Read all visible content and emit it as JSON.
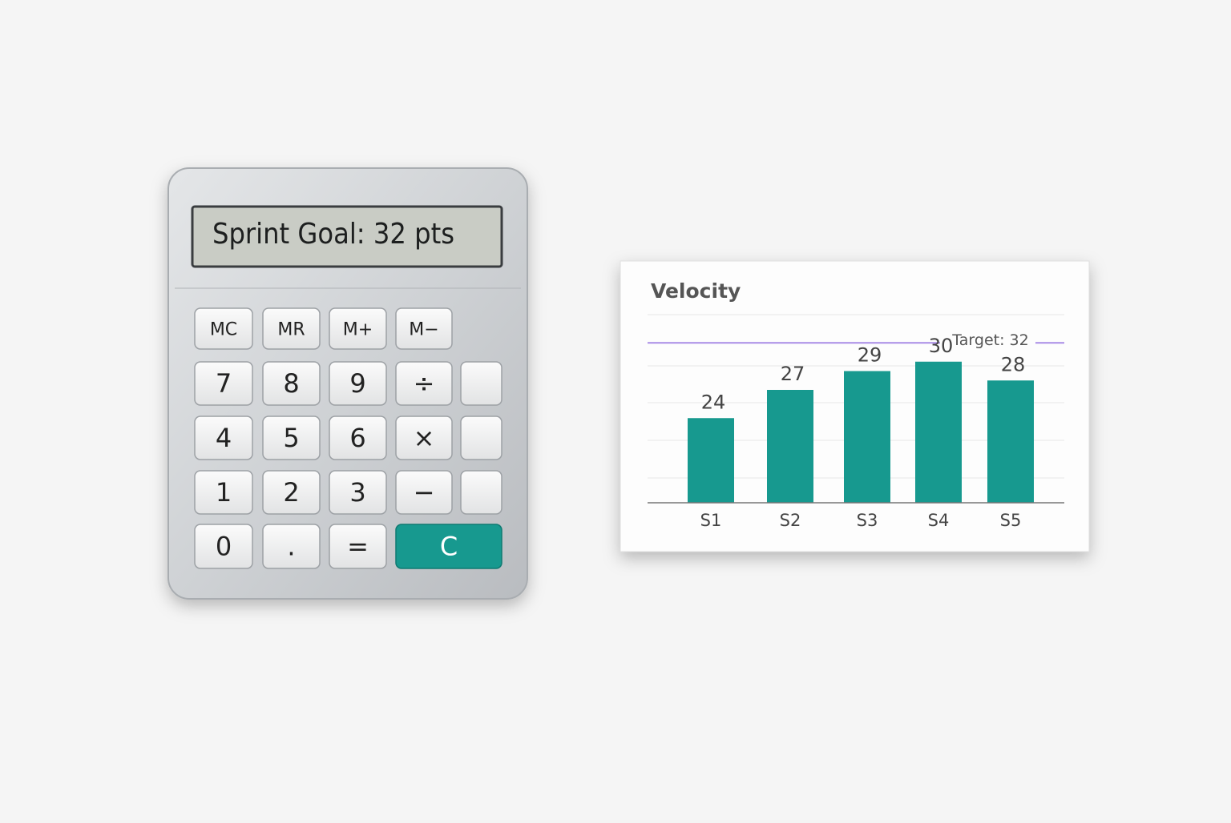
{
  "calculator": {
    "display": "Sprint Goal: 32 pts",
    "keys": [
      [
        "MC",
        "MR",
        "M+",
        "M−"
      ],
      [
        "7",
        "8",
        "9",
        "÷"
      ],
      [
        "4",
        "5",
        "6",
        "×"
      ],
      [
        "1",
        "2",
        "3",
        "−"
      ],
      [
        "0",
        ".",
        "=",
        "C"
      ]
    ]
  },
  "chart_data": {
    "type": "bar",
    "title": "Velocity",
    "categories": [
      "S1",
      "S2",
      "S3",
      "S4",
      "S5"
    ],
    "values": [
      24,
      27,
      29,
      30,
      28
    ],
    "color": "#17998f",
    "ylim": [
      15,
      35
    ],
    "target": {
      "value": 32,
      "label": "Target: 32",
      "color": "#a98be6"
    }
  }
}
